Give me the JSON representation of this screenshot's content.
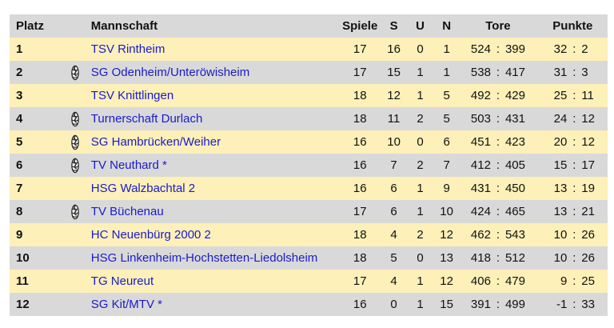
{
  "headers": {
    "platz": "Platz",
    "mannschaft": "Mannschaft",
    "spiele": "Spiele",
    "s": "S",
    "u": "U",
    "n": "N",
    "tore": "Tore",
    "punkte": "Punkte"
  },
  "separator": ":",
  "rows": [
    {
      "platz": "1",
      "icon": "",
      "team": "TSV Rintheim",
      "spiele": "17",
      "s": "16",
      "u": "0",
      "n": "1",
      "tore_plus": "524",
      "tore_minus": "399",
      "punkte_plus": "32",
      "punkte_minus": "2"
    },
    {
      "platz": "2",
      "icon": "handball-icon",
      "team": "SG Odenheim/Unteröwisheim",
      "spiele": "17",
      "s": "15",
      "u": "1",
      "n": "1",
      "tore_plus": "538",
      "tore_minus": "417",
      "punkte_plus": "31",
      "punkte_minus": "3"
    },
    {
      "platz": "3",
      "icon": "",
      "team": "TSV Knittlingen",
      "spiele": "18",
      "s": "12",
      "u": "1",
      "n": "5",
      "tore_plus": "492",
      "tore_minus": "429",
      "punkte_plus": "25",
      "punkte_minus": "11"
    },
    {
      "platz": "4",
      "icon": "handball-icon",
      "team": "Turnerschaft Durlach",
      "spiele": "18",
      "s": "11",
      "u": "2",
      "n": "5",
      "tore_plus": "503",
      "tore_minus": "431",
      "punkte_plus": "24",
      "punkte_minus": "12"
    },
    {
      "platz": "5",
      "icon": "handball-icon",
      "team": "SG Hambrücken/Weiher",
      "spiele": "16",
      "s": "10",
      "u": "0",
      "n": "6",
      "tore_plus": "451",
      "tore_minus": "423",
      "punkte_plus": "20",
      "punkte_minus": "12"
    },
    {
      "platz": "6",
      "icon": "handball-icon",
      "team": "TV Neuthard *",
      "spiele": "16",
      "s": "7",
      "u": "2",
      "n": "7",
      "tore_plus": "412",
      "tore_minus": "405",
      "punkte_plus": "15",
      "punkte_minus": "17"
    },
    {
      "platz": "7",
      "icon": "",
      "team": "HSG Walzbachtal 2",
      "spiele": "16",
      "s": "6",
      "u": "1",
      "n": "9",
      "tore_plus": "431",
      "tore_minus": "450",
      "punkte_plus": "13",
      "punkte_minus": "19"
    },
    {
      "platz": "8",
      "icon": "handball-icon",
      "team": "TV Büchenau",
      "spiele": "17",
      "s": "6",
      "u": "1",
      "n": "10",
      "tore_plus": "424",
      "tore_minus": "465",
      "punkte_plus": "13",
      "punkte_minus": "21"
    },
    {
      "platz": "9",
      "icon": "",
      "team": "HC Neuenbürg 2000 2",
      "spiele": "18",
      "s": "4",
      "u": "2",
      "n": "12",
      "tore_plus": "462",
      "tore_minus": "543",
      "punkte_plus": "10",
      "punkte_minus": "26"
    },
    {
      "platz": "10",
      "icon": "",
      "team": "HSG Linkenheim-Hochstetten-Liedolsheim",
      "spiele": "18",
      "s": "5",
      "u": "0",
      "n": "13",
      "tore_plus": "418",
      "tore_minus": "512",
      "punkte_plus": "10",
      "punkte_minus": "26"
    },
    {
      "platz": "11",
      "icon": "",
      "team": "TG Neureut",
      "spiele": "17",
      "s": "4",
      "u": "1",
      "n": "12",
      "tore_plus": "406",
      "tore_minus": "479",
      "punkte_plus": "9",
      "punkte_minus": "25"
    },
    {
      "platz": "12",
      "icon": "",
      "team": "SG Kit/MTV *",
      "spiele": "16",
      "s": "0",
      "u": "1",
      "n": "15",
      "tore_plus": "391",
      "tore_minus": "499",
      "punkte_plus": "-1",
      "punkte_minus": "33"
    }
  ],
  "colors": {
    "header_bg": "#d9d9d9",
    "row_odd_bg": "#fdf0b8",
    "row_even_bg": "#d9d9d9",
    "team_link": "#1a1acc"
  }
}
